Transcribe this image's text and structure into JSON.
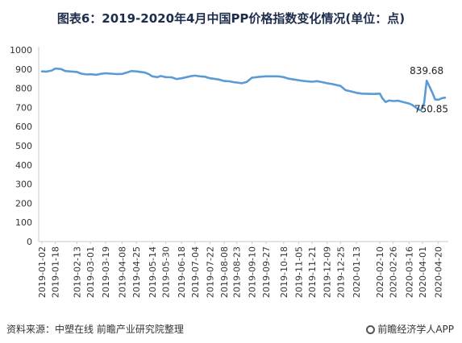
{
  "title": "图表6：2019-2020年4月中国PP价格指数变化情况(单位：点)",
  "source": "资料来源：中塑在线 前瞻产业研究院整理",
  "brand": "前瞻经济学人APP",
  "colors": {
    "line": "#5b9bd5",
    "title": "#1f2d4d",
    "axis": "#c9c9c9"
  },
  "chart_data": {
    "type": "line",
    "title": "图表6：2019-2020年4月中国PP价格指数变化情况(单位：点)",
    "xlabel": "",
    "ylabel": "",
    "ylim": [
      0,
      1000
    ],
    "yticks": [
      0,
      100,
      200,
      300,
      400,
      500,
      600,
      700,
      800,
      900,
      1000
    ],
    "grid": false,
    "legend": "none",
    "x_ticks": [
      "2019-01-02",
      "2019-01-18",
      "2019-02-13",
      "2019-03-01",
      "2019-03-19",
      "2019-04-08",
      "2019-04-25",
      "2019-05-14",
      "2019-05-30",
      "2019-06-18",
      "2019-07-04",
      "2019-07-22",
      "2019-08-08",
      "2019-08-23",
      "2019-09-10",
      "2019-09-27",
      "2019-10-18",
      "2019-11-05",
      "2019-11-21",
      "2019-12-09",
      "2019-12-25",
      "2020-01-13",
      "2020-02-10",
      "2020-02-26",
      "2020-03-16",
      "2020-04-01",
      "2020-04-20"
    ],
    "series": [
      {
        "points": [
          [
            "2019-01-02",
            888
          ],
          [
            "2019-01-08",
            887
          ],
          [
            "2019-01-14",
            893
          ],
          [
            "2019-01-18",
            903
          ],
          [
            "2019-01-25",
            900
          ],
          [
            "2019-01-30",
            890
          ],
          [
            "2019-02-13",
            885
          ],
          [
            "2019-02-18",
            876
          ],
          [
            "2019-02-25",
            872
          ],
          [
            "2019-03-01",
            873
          ],
          [
            "2019-03-08",
            870
          ],
          [
            "2019-03-13",
            875
          ],
          [
            "2019-03-19",
            878
          ],
          [
            "2019-03-26",
            876
          ],
          [
            "2019-04-01",
            874
          ],
          [
            "2019-04-08",
            875
          ],
          [
            "2019-04-15",
            884
          ],
          [
            "2019-04-19",
            890
          ],
          [
            "2019-04-25",
            888
          ],
          [
            "2019-05-05",
            882
          ],
          [
            "2019-05-10",
            873
          ],
          [
            "2019-05-14",
            862
          ],
          [
            "2019-05-20",
            858
          ],
          [
            "2019-05-24",
            864
          ],
          [
            "2019-05-30",
            858
          ],
          [
            "2019-06-06",
            857
          ],
          [
            "2019-06-12",
            848
          ],
          [
            "2019-06-18",
            852
          ],
          [
            "2019-06-24",
            858
          ],
          [
            "2019-06-28",
            862
          ],
          [
            "2019-07-04",
            866
          ],
          [
            "2019-07-10",
            862
          ],
          [
            "2019-07-16",
            860
          ],
          [
            "2019-07-22",
            852
          ],
          [
            "2019-07-29",
            848
          ],
          [
            "2019-08-02",
            845
          ],
          [
            "2019-08-08",
            838
          ],
          [
            "2019-08-14",
            836
          ],
          [
            "2019-08-19",
            832
          ],
          [
            "2019-08-23",
            830
          ],
          [
            "2019-08-29",
            826
          ],
          [
            "2019-09-04",
            833
          ],
          [
            "2019-09-10",
            855
          ],
          [
            "2019-09-16",
            858
          ],
          [
            "2019-09-20",
            860
          ],
          [
            "2019-09-27",
            862
          ],
          [
            "2019-10-10",
            862
          ],
          [
            "2019-10-14",
            861
          ],
          [
            "2019-10-18",
            858
          ],
          [
            "2019-10-24",
            850
          ],
          [
            "2019-10-30",
            846
          ],
          [
            "2019-11-05",
            842
          ],
          [
            "2019-11-11",
            838
          ],
          [
            "2019-11-15",
            836
          ],
          [
            "2019-11-21",
            834
          ],
          [
            "2019-11-27",
            837
          ],
          [
            "2019-12-03",
            832
          ],
          [
            "2019-12-09",
            826
          ],
          [
            "2019-12-15",
            822
          ],
          [
            "2019-12-19",
            818
          ],
          [
            "2019-12-25",
            812
          ],
          [
            "2019-12-31",
            790
          ],
          [
            "2020-01-06",
            784
          ],
          [
            "2020-01-13",
            776
          ],
          [
            "2020-01-20",
            772
          ],
          [
            "2020-02-03",
            770
          ],
          [
            "2020-02-10",
            772
          ],
          [
            "2020-02-13",
            748
          ],
          [
            "2020-02-17",
            728
          ],
          [
            "2020-02-21",
            736
          ],
          [
            "2020-02-26",
            733
          ],
          [
            "2020-03-03",
            735
          ],
          [
            "2020-03-09",
            728
          ],
          [
            "2020-03-16",
            720
          ],
          [
            "2020-03-20",
            712
          ],
          [
            "2020-03-24",
            700
          ],
          [
            "2020-03-27",
            690
          ],
          [
            "2020-03-30",
            685
          ],
          [
            "2020-04-01",
            700
          ],
          [
            "2020-04-03",
            725
          ],
          [
            "2020-04-06",
            839.68
          ],
          [
            "2020-04-09",
            812
          ],
          [
            "2020-04-13",
            775
          ],
          [
            "2020-04-16",
            742
          ],
          [
            "2020-04-20",
            740
          ],
          [
            "2020-04-24",
            748
          ],
          [
            "2020-04-28",
            750.85
          ]
        ]
      }
    ],
    "annotations": [
      {
        "x": "2020-04-06",
        "y": 839.68,
        "text": "839.68"
      },
      {
        "x": "2020-04-28",
        "y": 750.85,
        "text": "750.85"
      }
    ]
  }
}
